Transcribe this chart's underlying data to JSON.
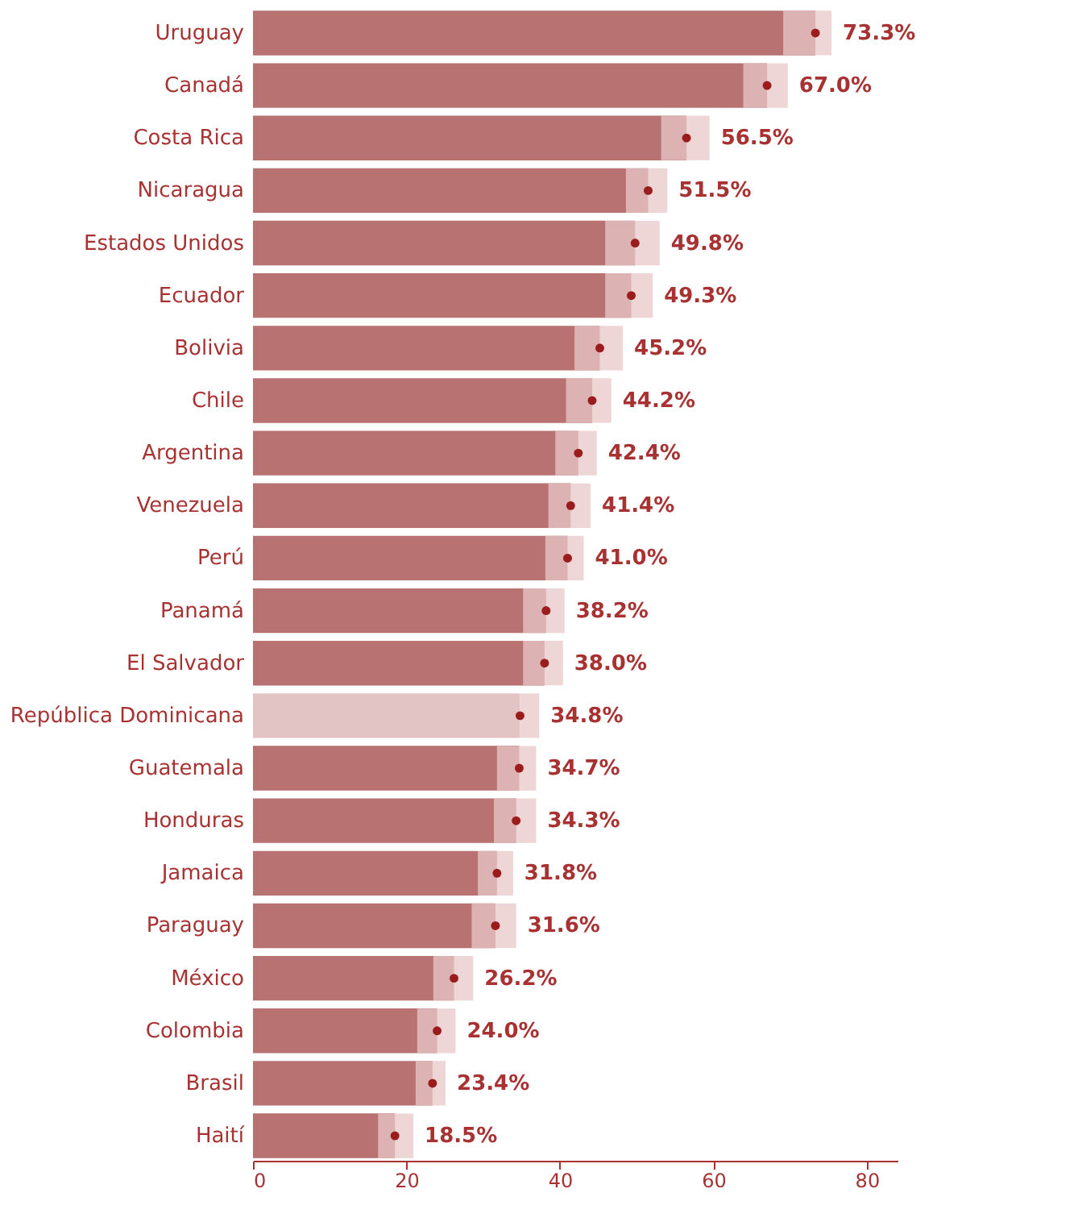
{
  "chart_data": {
    "type": "bar",
    "orientation": "horizontal",
    "categories": [
      "Uruguay",
      "Canadá",
      "Costa Rica",
      "Nicaragua",
      "Estados Unidos",
      "Ecuador",
      "Bolivia",
      "Chile",
      "Argentina",
      "Venezuela",
      "Perú",
      "Panamá",
      "El Salvador",
      "República Dominicana",
      "Guatemala",
      "Honduras",
      "Jamaica",
      "Paraguay",
      "México",
      "Colombia",
      "Brasil",
      "Haití"
    ],
    "series": [
      {
        "values": [
          73.3,
          67.0,
          56.5,
          51.5,
          49.8,
          49.3,
          45.2,
          44.2,
          42.4,
          41.4,
          41.0,
          38.2,
          38.0,
          34.8,
          34.7,
          34.3,
          31.8,
          31.6,
          26.2,
          24.0,
          23.4,
          18.5
        ],
        "errors": [
          [
            69.1,
            75.4
          ],
          [
            63.9,
            69.7
          ],
          [
            53.2,
            59.5
          ],
          [
            48.6,
            54.0
          ],
          [
            45.9,
            53.0
          ],
          [
            45.9,
            52.1
          ],
          [
            41.9,
            48.2
          ],
          [
            40.8,
            46.7
          ],
          [
            39.4,
            44.8
          ],
          [
            38.5,
            44.0
          ],
          [
            38.1,
            43.1
          ],
          [
            35.2,
            40.6
          ],
          [
            35.2,
            40.4
          ],
          [
            34.8,
            37.3
          ],
          [
            31.8,
            36.9
          ],
          [
            31.4,
            36.9
          ],
          [
            29.3,
            33.9
          ],
          [
            28.5,
            34.3
          ],
          [
            23.5,
            28.7
          ],
          [
            21.4,
            26.4
          ],
          [
            21.2,
            25.1
          ],
          [
            16.3,
            20.9
          ]
        ],
        "colors": [
          "#b87272",
          "#b87272",
          "#b87272",
          "#b87272",
          "#b87272",
          "#b87272",
          "#b87272",
          "#b87272",
          "#b87272",
          "#b87272",
          "#b87272",
          "#b87272",
          "#b87272",
          "#e3c4c4",
          "#b87272",
          "#b87272",
          "#b87272",
          "#b87272",
          "#b87272",
          "#b87272",
          "#b87272",
          "#b87272"
        ],
        "value_labels": [
          "73.3%",
          "67.0%",
          "56.5%",
          "51.5%",
          "49.8%",
          "49.3%",
          "45.2%",
          "44.2%",
          "42.4%",
          "41.4%",
          "41.0%",
          "38.2%",
          "38.0%",
          "34.8%",
          "34.7%",
          "34.3%",
          "31.8%",
          "31.6%",
          "26.2%",
          "24.0%",
          "23.4%",
          "18.5%"
        ]
      },
      {
        "type": "scatter",
        "color": "#9b1c1c",
        "marker": "circle",
        "x": [
          "Uruguay",
          "Canadá",
          "Costa Rica",
          "Nicaragua",
          "Estados Unidos",
          "Ecuador",
          "Bolivia",
          "Chile",
          "Argentina",
          "Venezuela",
          "Perú",
          "Panamá",
          "El Salvador",
          "República Dominicana",
          "Guatemala",
          "Honduras",
          "Jamaica",
          "Paraguay",
          "México",
          "Colombia",
          "Brasil",
          "Haití"
        ],
        "values": [
          73.3,
          67.0,
          56.5,
          51.5,
          49.8,
          49.3,
          45.2,
          44.2,
          42.4,
          41.4,
          41.0,
          38.2,
          38.0,
          34.8,
          34.7,
          34.3,
          31.8,
          31.6,
          26.2,
          24.0,
          23.4,
          18.5
        ]
      }
    ],
    "xlim": [
      0,
      84
    ],
    "xticks": [
      0,
      20,
      40,
      60,
      80
    ],
    "grid": false
  }
}
